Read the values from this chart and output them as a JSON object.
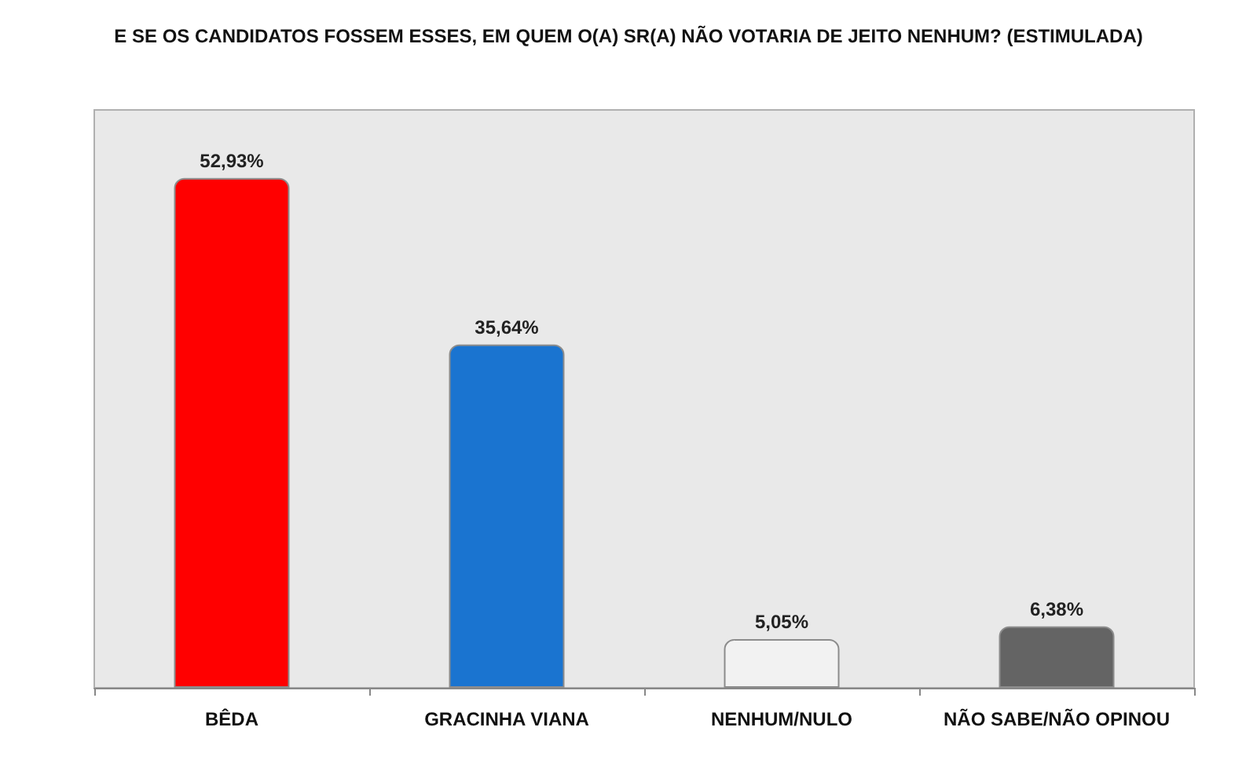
{
  "chart_data": {
    "type": "bar",
    "title": "E SE OS CANDIDATOS FOSSEM ESSES, EM QUEM O(A) SR(A) NÃO VOTARIA DE JEITO NENHUM? (ESTIMULADA)",
    "categories": [
      "BÊDA",
      "GRACINHA VIANA",
      "NENHUM/NULO",
      "NÃO SABE/NÃO OPINOU"
    ],
    "values": [
      52.93,
      35.64,
      5.05,
      6.38
    ],
    "colors": [
      "#ff0000",
      "#1a74d0",
      "#f2f2f2",
      "#646464"
    ],
    "value_labels": [
      "52,93%",
      "35,64%",
      "5,05%",
      "6,38%"
    ]
  }
}
